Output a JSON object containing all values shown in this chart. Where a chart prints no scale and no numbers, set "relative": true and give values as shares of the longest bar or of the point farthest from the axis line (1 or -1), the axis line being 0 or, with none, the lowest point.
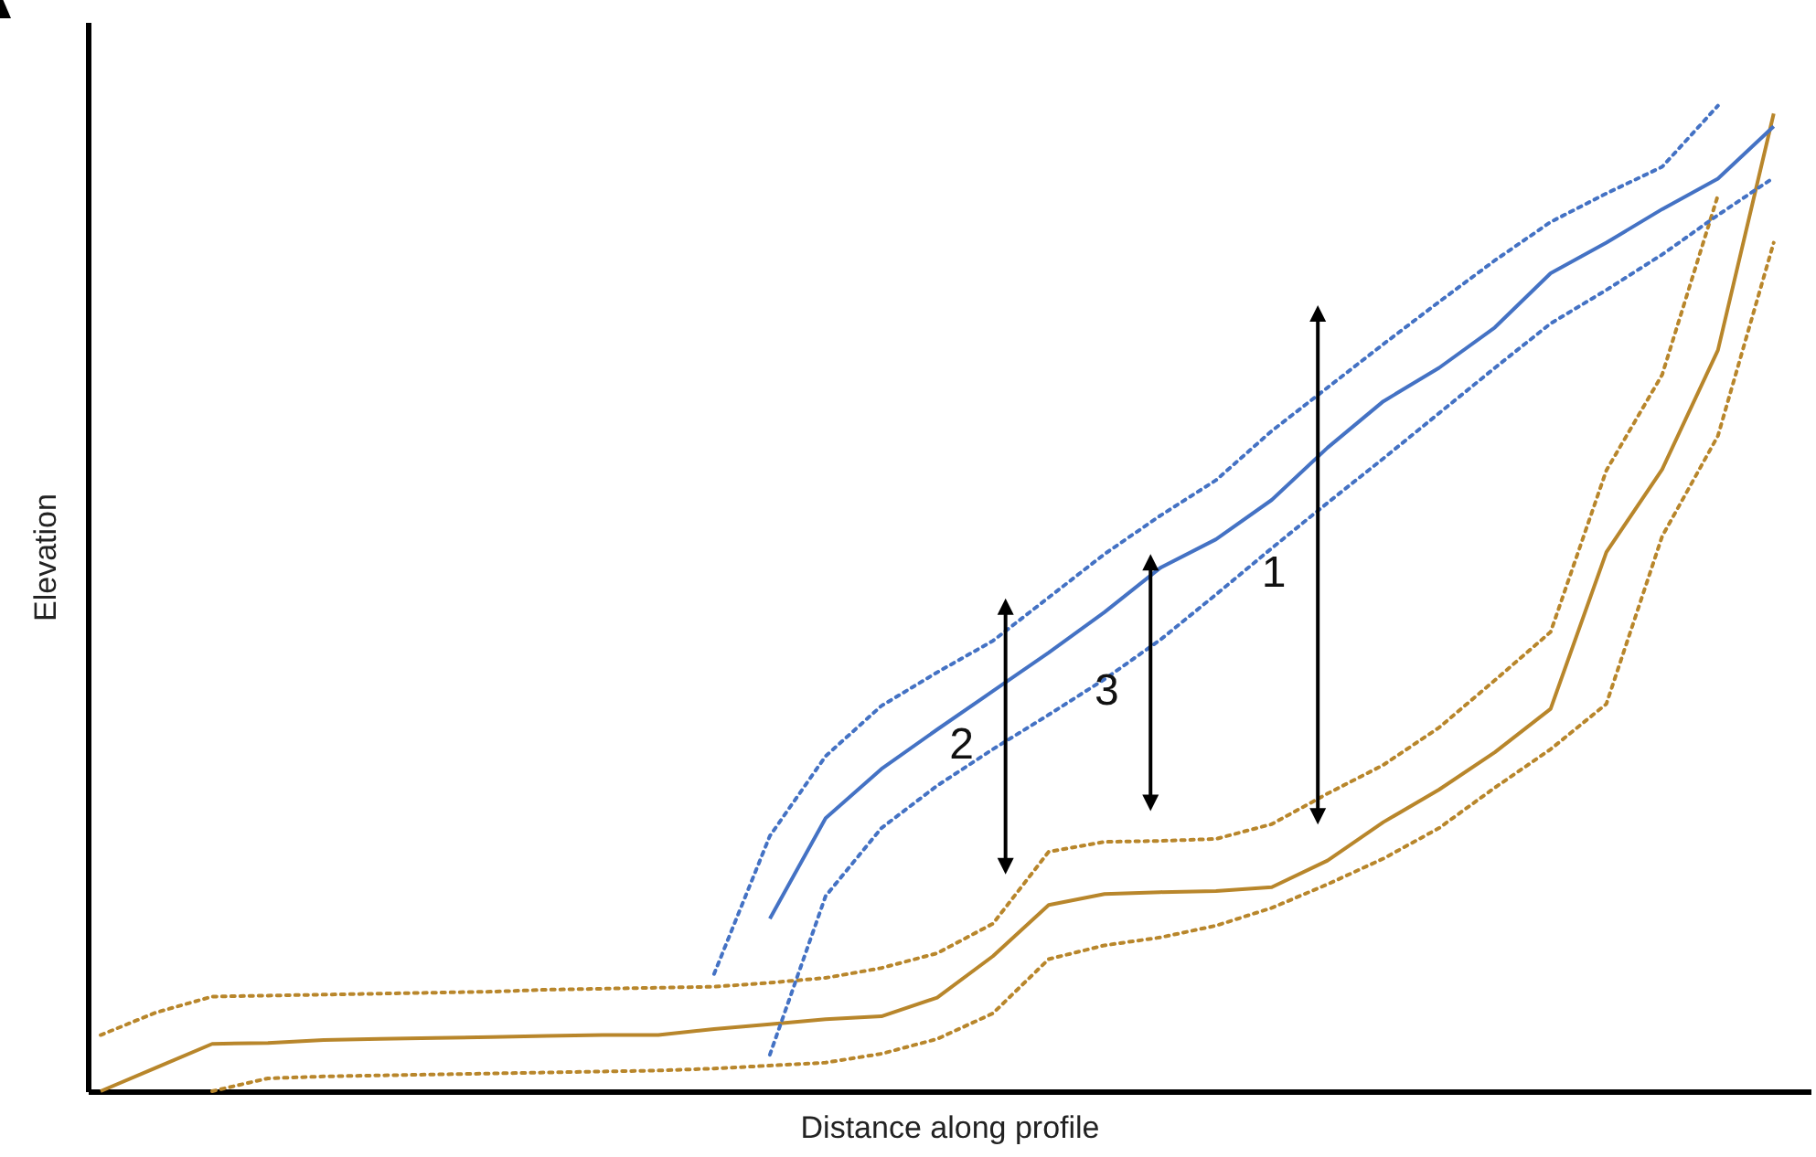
{
  "chart_data": {
    "type": "line",
    "relative": true,
    "xlabel": "Distance along profile",
    "ylabel": "Elevation",
    "categories": [
      null,
      null,
      null,
      null,
      null,
      null,
      null,
      null,
      null,
      null,
      null,
      null,
      null,
      null,
      null,
      null,
      null,
      null,
      null,
      null,
      null,
      null,
      null,
      null,
      null,
      null,
      null,
      null,
      null,
      null,
      null
    ],
    "series": [
      {
        "color": "#b8862b",
        "line_style": "solid",
        "values": [
          0,
          0.024,
          0.048,
          0.049,
          0.052,
          0.053,
          0.054,
          0.055,
          0.056,
          0.057,
          0.057,
          0.063,
          0.068,
          0.073,
          0.076,
          0.095,
          0.137,
          0.189,
          0.2,
          0.202,
          0.203,
          0.207,
          0.234,
          0.273,
          0.306,
          0.344,
          0.388,
          0.547,
          0.631,
          0.752,
          0.992
        ]
      },
      {
        "color": "#b8862b",
        "line_style": "dotted",
        "values": [
          0.057,
          0.08,
          0.096,
          0.097,
          0.098,
          0.099,
          0.1,
          0.101,
          0.103,
          0.104,
          0.105,
          0.106,
          0.11,
          0.115,
          0.125,
          0.14,
          0.17,
          0.243,
          0.253,
          0.254,
          0.256,
          0.271,
          0.302,
          0.331,
          0.369,
          0.417,
          0.466,
          0.63,
          0.727,
          0.909,
          null
        ]
      },
      {
        "color": "#b8862b",
        "line_style": "dotted",
        "values": [
          null,
          null,
          0,
          0.013,
          0.015,
          0.016,
          0.017,
          0.018,
          0.019,
          0.02,
          0.021,
          0.023,
          0.026,
          0.029,
          0.038,
          0.053,
          0.079,
          0.134,
          0.148,
          0.156,
          0.168,
          0.186,
          0.21,
          0.236,
          0.267,
          0.308,
          0.347,
          0.393,
          0.563,
          0.665,
          0.861
        ]
      },
      {
        "color": "#4472c4",
        "line_style": "solid",
        "values": [
          null,
          null,
          null,
          null,
          null,
          null,
          null,
          null,
          null,
          null,
          null,
          null,
          0.175,
          0.277,
          0.327,
          0.367,
          0.406,
          0.445,
          0.486,
          0.531,
          0.56,
          0.6,
          0.653,
          0.7,
          0.734,
          0.775,
          0.83,
          0.861,
          0.895,
          0.926,
          0.979
        ]
      },
      {
        "color": "#4472c4",
        "line_style": "dotted",
        "values": [
          null,
          null,
          null,
          null,
          null,
          null,
          null,
          null,
          null,
          null,
          null,
          0.119,
          0.259,
          0.34,
          0.391,
          0.425,
          0.457,
          0.501,
          0.545,
          0.584,
          0.62,
          0.67,
          0.714,
          0.758,
          0.801,
          0.843,
          0.882,
          0.911,
          0.938,
          1.0,
          null
        ]
      },
      {
        "color": "#4472c4",
        "line_style": "dotted",
        "values": [
          null,
          null,
          null,
          null,
          null,
          null,
          null,
          null,
          null,
          null,
          null,
          null,
          0.037,
          0.198,
          0.267,
          0.31,
          0.347,
          0.382,
          0.418,
          0.458,
          0.504,
          0.551,
          0.597,
          0.642,
          0.688,
          0.734,
          0.779,
          0.813,
          0.849,
          0.889,
          0.927
        ]
      }
    ],
    "annotations": [
      "1",
      "2",
      "3"
    ]
  }
}
